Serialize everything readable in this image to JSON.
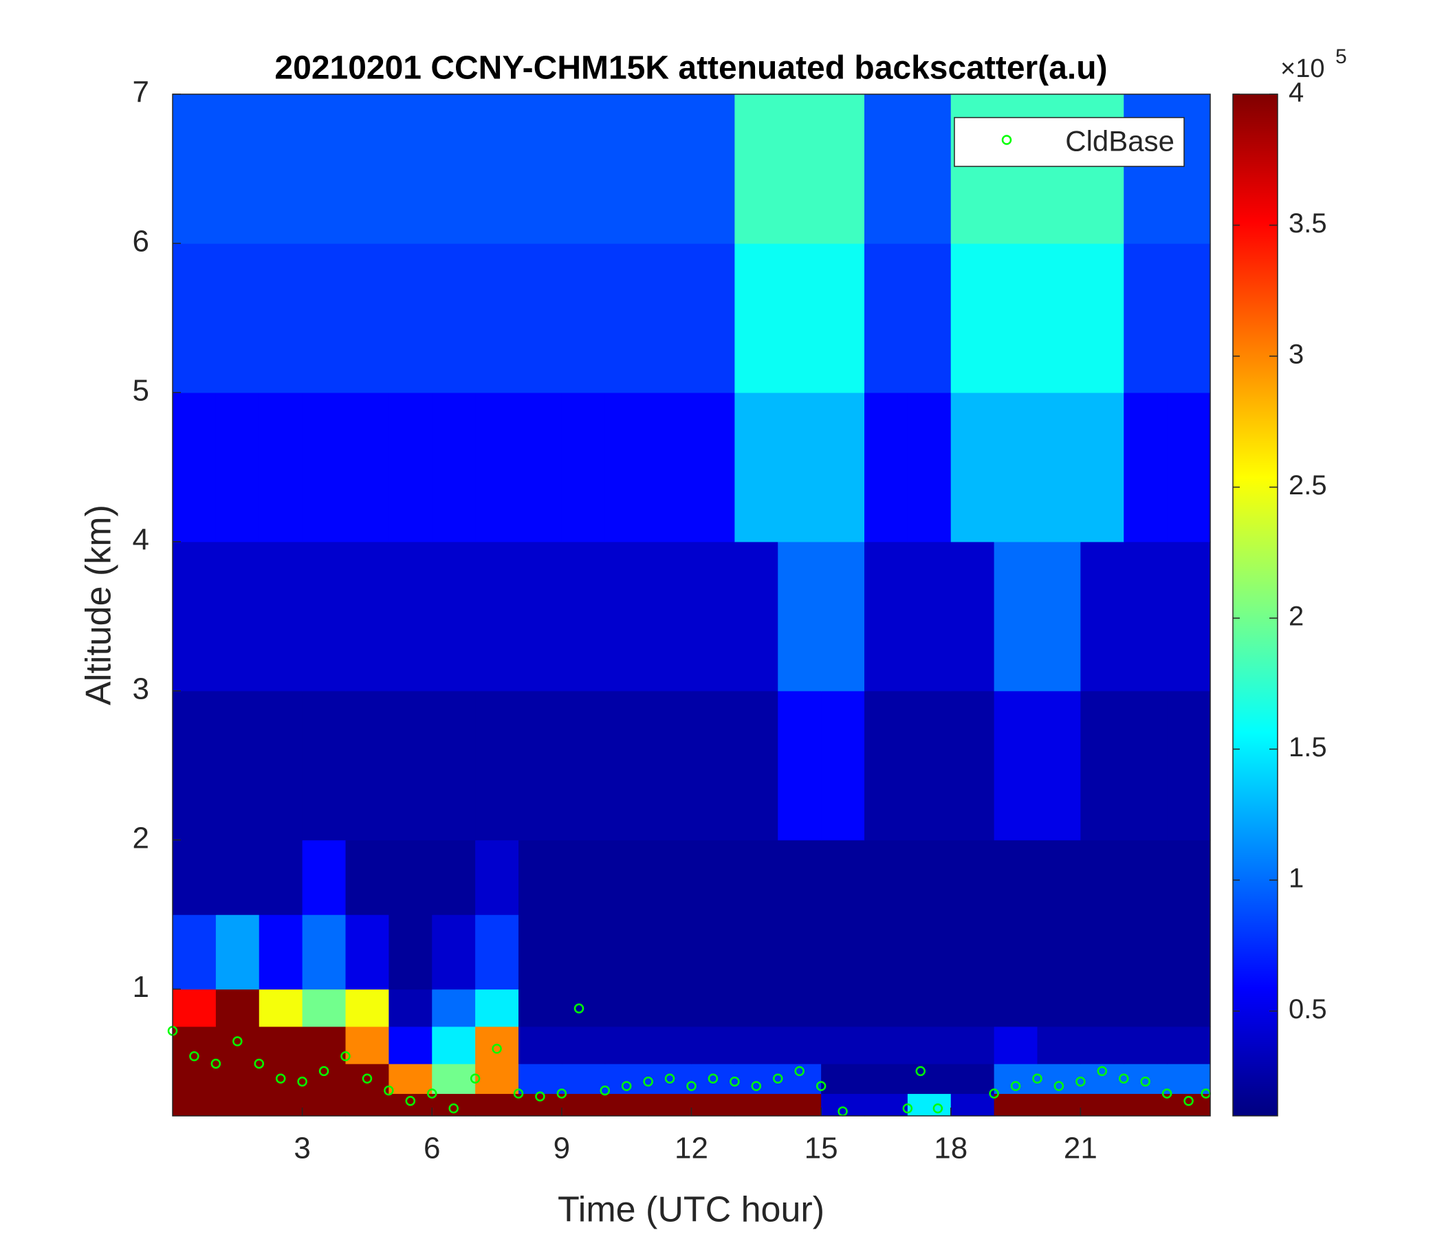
{
  "chart_data": {
    "type": "heatmap",
    "title": "20210201 CCNY-CHM15K attenuated backscatter(a.u)",
    "x_label": "Time (UTC hour)",
    "y_label": "Altitude (km)",
    "colormap": "jet",
    "xlim": [
      0,
      24
    ],
    "ylim": [
      0.15,
      7
    ],
    "xticks": [
      3,
      6,
      9,
      12,
      15,
      18,
      21
    ],
    "yticks": [
      1,
      2,
      3,
      4,
      5,
      6,
      7
    ],
    "clim": [
      10000,
      400000
    ],
    "cticks": [
      {
        "value": 50000,
        "label": "0.5"
      },
      {
        "value": 100000,
        "label": "1"
      },
      {
        "value": 150000,
        "label": "1.5"
      },
      {
        "value": 200000,
        "label": "2"
      },
      {
        "value": 250000,
        "label": "2.5"
      },
      {
        "value": 300000,
        "label": "3"
      },
      {
        "value": 350000,
        "label": "3.5"
      },
      {
        "value": 400000,
        "label": "4"
      }
    ],
    "cbar_multiplier": "×10",
    "cbar_exponent": "5",
    "x_bins": [
      0,
      1,
      2,
      3,
      4,
      5,
      6,
      7,
      8,
      9,
      10,
      11,
      12,
      13,
      14,
      15,
      16,
      17,
      18,
      19,
      20,
      21,
      22,
      23,
      24
    ],
    "y_bins": [
      0.15,
      0.3,
      0.5,
      0.75,
      1,
      1.5,
      2,
      3,
      4,
      5,
      6,
      7
    ],
    "z": [
      [
        400000,
        400000,
        400000,
        400000,
        400000,
        400000,
        400000,
        400000,
        400000,
        400000,
        400000,
        400000,
        400000,
        400000,
        400000,
        40000,
        40000,
        150000,
        40000,
        400000,
        400000,
        400000,
        400000,
        400000
      ],
      [
        400000,
        400000,
        400000,
        400000,
        400000,
        300000,
        200000,
        300000,
        80000,
        80000,
        80000,
        80000,
        80000,
        80000,
        80000,
        20000,
        20000,
        20000,
        20000,
        100000,
        100000,
        100000,
        100000,
        100000
      ],
      [
        400000,
        400000,
        400000,
        400000,
        300000,
        60000,
        150000,
        300000,
        30000,
        30000,
        30000,
        30000,
        30000,
        30000,
        30000,
        30000,
        30000,
        30000,
        30000,
        50000,
        30000,
        30000,
        30000,
        30000
      ],
      [
        350000,
        400000,
        250000,
        200000,
        250000,
        30000,
        100000,
        150000,
        20000,
        20000,
        20000,
        20000,
        20000,
        20000,
        20000,
        20000,
        20000,
        20000,
        20000,
        20000,
        20000,
        20000,
        20000,
        20000
      ],
      [
        80000,
        120000,
        60000,
        100000,
        50000,
        20000,
        40000,
        80000,
        20000,
        20000,
        20000,
        20000,
        20000,
        20000,
        20000,
        20000,
        20000,
        20000,
        20000,
        20000,
        20000,
        20000,
        20000,
        20000
      ],
      [
        25000,
        25000,
        25000,
        60000,
        20000,
        20000,
        20000,
        40000,
        20000,
        20000,
        20000,
        20000,
        20000,
        20000,
        20000,
        20000,
        20000,
        20000,
        20000,
        20000,
        20000,
        20000,
        20000,
        20000
      ],
      [
        25000,
        25000,
        25000,
        25000,
        25000,
        25000,
        25000,
        25000,
        25000,
        25000,
        25000,
        25000,
        25000,
        25000,
        60000,
        60000,
        25000,
        25000,
        25000,
        50000,
        50000,
        25000,
        25000,
        25000
      ],
      [
        40000,
        40000,
        40000,
        40000,
        40000,
        40000,
        40000,
        40000,
        40000,
        40000,
        40000,
        40000,
        40000,
        40000,
        100000,
        100000,
        40000,
        40000,
        40000,
        100000,
        100000,
        40000,
        40000,
        40000
      ],
      [
        60000,
        60000,
        60000,
        60000,
        60000,
        60000,
        60000,
        60000,
        60000,
        60000,
        60000,
        60000,
        60000,
        130000,
        130000,
        130000,
        60000,
        60000,
        130000,
        130000,
        130000,
        130000,
        60000,
        60000
      ],
      [
        80000,
        80000,
        80000,
        80000,
        80000,
        80000,
        80000,
        80000,
        80000,
        80000,
        80000,
        80000,
        80000,
        160000,
        160000,
        160000,
        80000,
        80000,
        160000,
        160000,
        160000,
        160000,
        80000,
        80000
      ],
      [
        90000,
        90000,
        90000,
        90000,
        90000,
        90000,
        90000,
        90000,
        90000,
        90000,
        90000,
        90000,
        90000,
        180000,
        180000,
        180000,
        90000,
        90000,
        180000,
        180000,
        180000,
        180000,
        90000,
        90000
      ]
    ],
    "series": [
      {
        "name": "CldBase",
        "type": "scatter",
        "color": "#00ff00",
        "x": [
          0,
          0.5,
          1,
          1.5,
          2,
          2.5,
          3,
          3.5,
          4,
          4.5,
          5,
          5.5,
          6,
          6.5,
          7,
          7.5,
          8,
          8.5,
          9,
          9.4,
          10,
          10.5,
          11,
          11.5,
          12,
          12.5,
          13,
          13.5,
          14,
          14.5,
          15,
          15.5,
          17,
          17.3,
          17.7,
          19,
          19.5,
          20,
          20.5,
          21,
          21.5,
          22,
          22.5,
          23,
          23.5,
          23.9
        ],
        "values": [
          0.72,
          0.55,
          0.5,
          0.65,
          0.5,
          0.4,
          0.38,
          0.45,
          0.55,
          0.4,
          0.32,
          0.25,
          0.3,
          0.2,
          0.4,
          0.6,
          0.3,
          0.28,
          0.3,
          0.87,
          0.32,
          0.35,
          0.38,
          0.4,
          0.35,
          0.4,
          0.38,
          0.35,
          0.4,
          0.45,
          0.35,
          0.18,
          0.2,
          0.45,
          0.2,
          0.3,
          0.35,
          0.4,
          0.35,
          0.38,
          0.45,
          0.4,
          0.38,
          0.3,
          0.25,
          0.3
        ]
      }
    ],
    "legend": "northeast"
  }
}
